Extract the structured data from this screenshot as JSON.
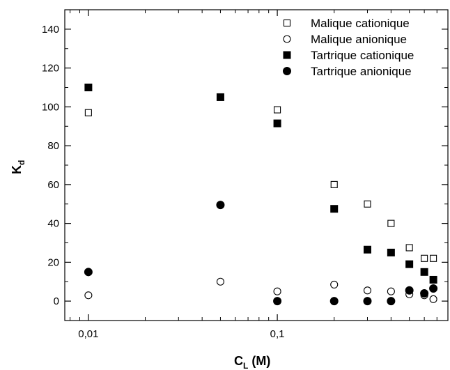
{
  "chart_data": {
    "type": "scatter",
    "xscale": "log",
    "xlim": [
      0.0075,
      0.8
    ],
    "ylim": [
      -10,
      150
    ],
    "x_ticks": [
      {
        "value": 0.01,
        "label": "0,01"
      },
      {
        "value": 0.1,
        "label": "0,1"
      }
    ],
    "y_ticks": [
      0,
      20,
      40,
      60,
      80,
      100,
      120,
      140
    ],
    "xlabel": {
      "main": "C",
      "sub": "L",
      "suffix": " (M)"
    },
    "ylabel": {
      "main": "K",
      "sub": "d"
    },
    "legend_position": "top-right",
    "grid": false,
    "series": [
      {
        "name": "Malique cationique",
        "marker": "square-open",
        "color": "#000000",
        "points": [
          {
            "x": 0.01,
            "y": 97
          },
          {
            "x": 0.1,
            "y": 98.5
          },
          {
            "x": 0.2,
            "y": 60
          },
          {
            "x": 0.3,
            "y": 50
          },
          {
            "x": 0.4,
            "y": 40
          },
          {
            "x": 0.5,
            "y": 27.5
          },
          {
            "x": 0.6,
            "y": 22
          },
          {
            "x": 0.67,
            "y": 22
          }
        ]
      },
      {
        "name": "Malique anionique",
        "marker": "circle-open",
        "color": "#000000",
        "points": [
          {
            "x": 0.01,
            "y": 3
          },
          {
            "x": 0.05,
            "y": 10
          },
          {
            "x": 0.1,
            "y": 5
          },
          {
            "x": 0.2,
            "y": 8.5
          },
          {
            "x": 0.3,
            "y": 5.5
          },
          {
            "x": 0.4,
            "y": 5
          },
          {
            "x": 0.5,
            "y": 3.5
          },
          {
            "x": 0.6,
            "y": 3
          },
          {
            "x": 0.67,
            "y": 1
          }
        ]
      },
      {
        "name": "Tartrique cationique",
        "marker": "square-filled",
        "color": "#000000",
        "points": [
          {
            "x": 0.01,
            "y": 110
          },
          {
            "x": 0.05,
            "y": 105
          },
          {
            "x": 0.1,
            "y": 91.5
          },
          {
            "x": 0.2,
            "y": 47.5
          },
          {
            "x": 0.3,
            "y": 26.5
          },
          {
            "x": 0.4,
            "y": 25
          },
          {
            "x": 0.5,
            "y": 19
          },
          {
            "x": 0.6,
            "y": 15
          },
          {
            "x": 0.67,
            "y": 11
          }
        ]
      },
      {
        "name": "Tartrique anionique",
        "marker": "circle-filled",
        "color": "#000000",
        "points": [
          {
            "x": 0.01,
            "y": 15
          },
          {
            "x": 0.05,
            "y": 49.5
          },
          {
            "x": 0.1,
            "y": 0
          },
          {
            "x": 0.2,
            "y": 0
          },
          {
            "x": 0.3,
            "y": 0
          },
          {
            "x": 0.4,
            "y": 0
          },
          {
            "x": 0.5,
            "y": 5.5
          },
          {
            "x": 0.6,
            "y": 4
          },
          {
            "x": 0.67,
            "y": 6.5
          }
        ]
      }
    ]
  }
}
